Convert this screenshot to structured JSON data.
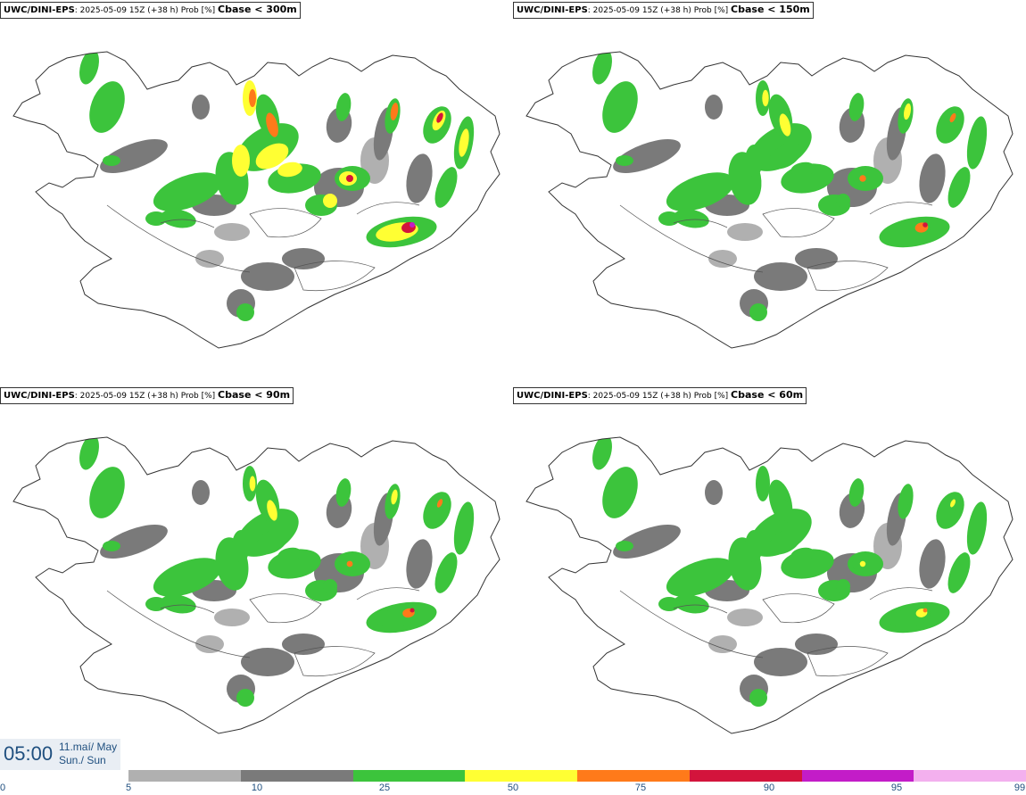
{
  "panels": [
    {
      "model": "UWC/DINI-EPS",
      "info": ": 2025-05-09 15Z (+38 h) Prob [%] ",
      "threshold": "Cbase < 300m",
      "intensity": 1.0
    },
    {
      "model": "UWC/DINI-EPS",
      "info": ": 2025-05-09 15Z (+38 h) Prob [%] ",
      "threshold": "Cbase < 150m",
      "intensity": 0.85
    },
    {
      "model": "UWC/DINI-EPS",
      "info": ": 2025-05-09 15Z (+38 h) Prob [%] ",
      "threshold": "Cbase < 90m",
      "intensity": 0.7
    },
    {
      "model": "UWC/DINI-EPS",
      "info": ": 2025-05-09 15Z (+38 h) Prob [%] ",
      "threshold": "Cbase < 60m",
      "intensity": 0.6
    }
  ],
  "time": {
    "clock": "05:00",
    "date_line1": "11.maí/ May",
    "date_line2": "Sun./ Sun"
  },
  "legend": {
    "ticks": [
      "0",
      "5",
      "10",
      "25",
      "50",
      "75",
      "90",
      "95",
      "99"
    ],
    "colors": [
      "#b0b0b0",
      "#7a7a7a",
      "#3cc43c",
      "#ffff33",
      "#ff7a1a",
      "#d3143c",
      "#c31cc8",
      "#f3b0ee"
    ]
  }
}
